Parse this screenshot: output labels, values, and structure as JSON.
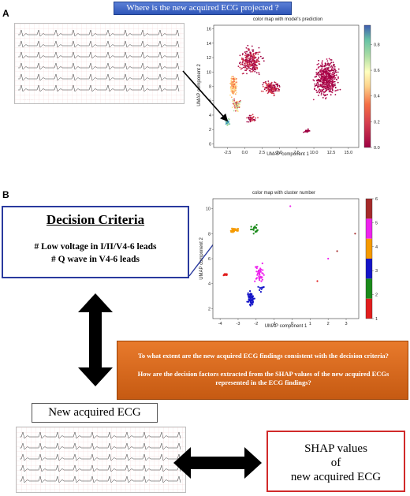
{
  "panel_a": {
    "letter": "A",
    "question": "Where is the new acquired ECG projected ?",
    "plot": {
      "title": "color map with model's prediction",
      "xlabel": "UMAP component 1",
      "ylabel": "UMAP component 2",
      "xticks": [
        "-2.5",
        "0.0",
        "2.5",
        "5.0",
        "7.5",
        "10.0",
        "12.5",
        "15.0"
      ],
      "yticks": [
        "0",
        "2",
        "4",
        "6",
        "8",
        "10",
        "12",
        "14",
        "16"
      ],
      "colorbar_ticks": [
        "0.0",
        "0.2",
        "0.4",
        "0.6",
        "0.8"
      ]
    }
  },
  "panel_b": {
    "letter": "B",
    "criteria": {
      "title": "Decision Criteria",
      "lines": [
        "# Low voltage in I/II/V4-6 leads",
        "# Q wave in V4-6 leads"
      ]
    },
    "plot": {
      "title": "color map with cluster number",
      "xlabel": "UMAP component 1",
      "ylabel": "UMAP component 2",
      "xticks": [
        "-4",
        "-3",
        "-2",
        "-1",
        "0",
        "1",
        "2",
        "3"
      ],
      "yticks": [
        "2",
        "4",
        "6",
        "8",
        "10"
      ],
      "colorbar_ticks": [
        "1",
        "2",
        "3",
        "4",
        "5",
        "6"
      ],
      "cluster_colors": [
        "#e11d1d",
        "#1a8a1a",
        "#1414c8",
        "#f59a00",
        "#ee22ee",
        "#a52a2a"
      ]
    },
    "questions": [
      "To what extent are the new acquired ECG findings consistent with the decision criteria?",
      "How are the decision factors extracted from the SHAP values of the new acquired ECGs represented in the ECG findings?"
    ],
    "new_ecg_label": "New acquired ECG",
    "shap_lines": [
      "SHAP values",
      "of",
      "new acquired ECG"
    ]
  },
  "colors": {
    "criteria_border": "#2a3a9e",
    "question_box": "#d9691e",
    "shap_border": "#d12a2a",
    "title_banner": "#3c63c7"
  }
}
